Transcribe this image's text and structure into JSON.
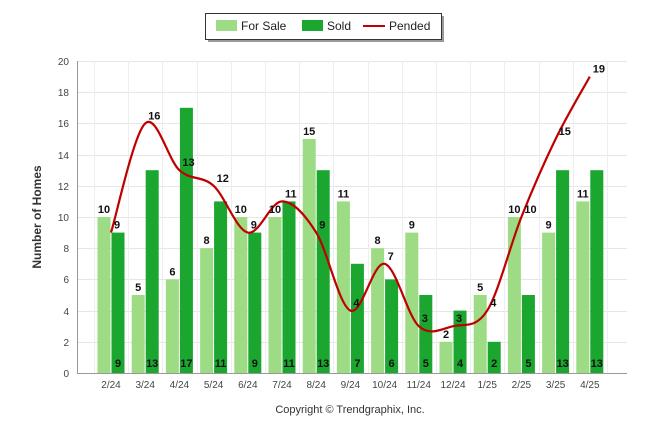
{
  "chart_data": {
    "type": "bar",
    "title": "",
    "ylabel": "Number of Homes",
    "xlabel": "",
    "ylim": [
      0,
      20
    ],
    "yticks": [
      0,
      2,
      4,
      6,
      8,
      10,
      12,
      14,
      16,
      18,
      20
    ],
    "categories": [
      "2/24",
      "3/24",
      "4/24",
      "5/24",
      "6/24",
      "7/24",
      "8/24",
      "9/24",
      "10/24",
      "11/24",
      "12/24",
      "1/25",
      "2/25",
      "3/25",
      "4/25"
    ],
    "series": [
      {
        "name": "For Sale",
        "type": "bar",
        "color": "#9ddc85",
        "values": [
          10,
          5,
          6,
          8,
          10,
          10,
          15,
          11,
          8,
          9,
          2,
          5,
          10,
          9,
          11
        ]
      },
      {
        "name": "Sold",
        "type": "bar",
        "color": "#1aa62f",
        "values": [
          9,
          13,
          17,
          11,
          9,
          11,
          13,
          7,
          6,
          5,
          4,
          2,
          5,
          13,
          13
        ]
      },
      {
        "name": "Pended",
        "type": "line",
        "color": "#c00000",
        "values": [
          9,
          16,
          13,
          12,
          9,
          11,
          9,
          4,
          7,
          3,
          3,
          4,
          10,
          15,
          19
        ]
      }
    ],
    "grid": true,
    "legend_position": "top-center"
  },
  "footer": {
    "copyright": "Copyright © Trendgraphix, Inc."
  }
}
